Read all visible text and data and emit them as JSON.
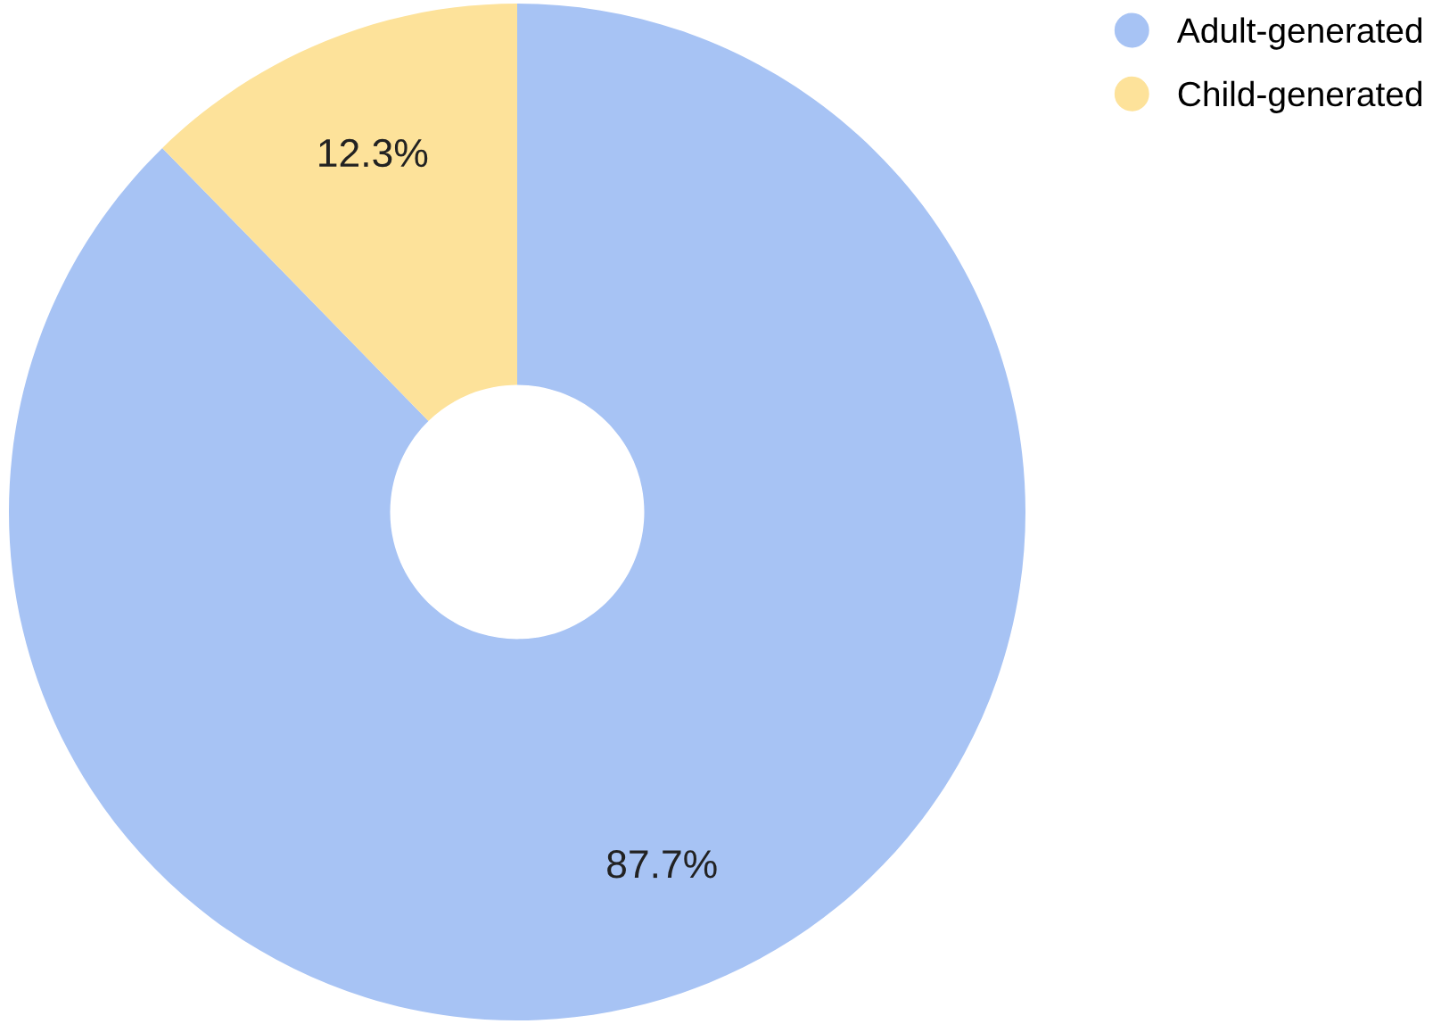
{
  "chart_data": {
    "type": "donut",
    "categories": [
      "Adult-generated",
      "Child-generated"
    ],
    "values": [
      87.7,
      12.3
    ],
    "colors": [
      "#a7c3f4",
      "#fde29a"
    ],
    "value_labels": [
      "87.7%",
      "12.3%"
    ],
    "legend": "top right"
  }
}
